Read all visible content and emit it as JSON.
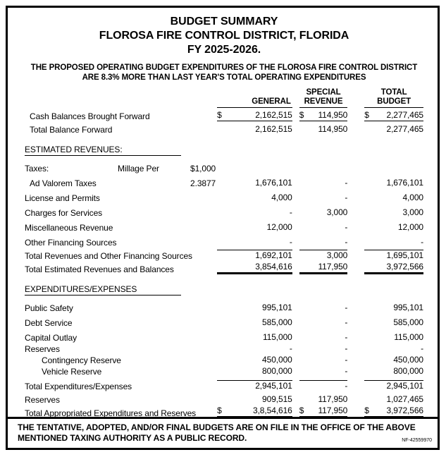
{
  "header": {
    "title_line1": "BUDGET SUMMARY",
    "title_line2": "FLOROSA FIRE CONTROL DISTRICT, FLORIDA",
    "title_line3": "FY 2025-2026.",
    "subtitle_line1": "THE PROPOSED OPERATING BUDGET EXPENDITURES OF THE FLOROSA FIRE CONTROL DISTRICT",
    "subtitle_line2": "ARE 8.3% MORE THAN LAST YEAR'S TOTAL OPERATING EXPENDITURES"
  },
  "columns": {
    "general": "GENERAL",
    "special_line1": "SPECIAL",
    "special_line2": "REVENUE",
    "total_line1": "TOTAL",
    "total_line2": "BUDGET"
  },
  "table": {
    "rows": [
      {
        "type": "data",
        "label": "Cash Balances Brought Forward",
        "indent": 1,
        "dollar": true,
        "general": "2,162,515",
        "special": "114,950",
        "total": "2,277,465",
        "underline": true,
        "compact": "s"
      },
      {
        "type": "data",
        "label": "Total Balance Forward",
        "indent": 1,
        "general": "2,162,515",
        "special": "114,950",
        "total": "2,277,465",
        "compact": "s"
      },
      {
        "type": "spacer"
      },
      {
        "type": "section",
        "label": "ESTIMATED REVENUES:"
      },
      {
        "type": "data",
        "label": "Taxes:",
        "mid": "Millage Per",
        "extra": "$1,000"
      },
      {
        "type": "data",
        "label": "Ad Valorem Taxes",
        "indent": 1,
        "extra": "2.3877",
        "general": "1,676,101",
        "special": "-",
        "total": "1,676,101"
      },
      {
        "type": "data",
        "label": "License and Permits",
        "general": "4,000",
        "special": "-",
        "total": "4,000"
      },
      {
        "type": "data",
        "label": "Charges for Services",
        "general": "-",
        "special": "3,000",
        "total": "3,000"
      },
      {
        "type": "data",
        "label": "Miscellaneous Revenue",
        "general": "12,000",
        "special": "-",
        "total": "12,000"
      },
      {
        "type": "data",
        "label": "Other Financing Sources",
        "general": "-",
        "special": "-",
        "total": "-"
      },
      {
        "type": "data",
        "label": "Total Revenues and Other Financing Sources",
        "general": "1,692,101",
        "special": "3,000",
        "total": "1,695,101",
        "line_above": true,
        "compact": "s"
      },
      {
        "type": "data",
        "label": "Total Estimated Revenues and Balances",
        "general": "3,854,616",
        "special": "117,950",
        "total": "3,972,566",
        "thick_below": true,
        "compact": "s"
      },
      {
        "type": "spacer"
      },
      {
        "type": "section",
        "label": "EXPENDITURES/EXPENSES"
      },
      {
        "type": "data",
        "label": "Public Safety",
        "general": "995,101",
        "special": "-",
        "total": "995,101"
      },
      {
        "type": "data",
        "label": "Debt Service",
        "general": "585,000",
        "special": "-",
        "total": "585,000"
      },
      {
        "type": "data",
        "label": "Capital Outlay",
        "general": "115,000",
        "special": "-",
        "total": "115,000"
      },
      {
        "type": "data",
        "label": "Reserves",
        "general": "-",
        "special": "-",
        "total": "-",
        "compact": "t"
      },
      {
        "type": "data",
        "label": "Contingency Reserve",
        "indent": 2,
        "general": "450,000",
        "special": "-",
        "total": "450,000",
        "compact": "t"
      },
      {
        "type": "data",
        "label": "Vehicle Reserve",
        "indent": 2,
        "general": "800,000",
        "special": "-",
        "total": "800,000",
        "compact": "t"
      },
      {
        "type": "data",
        "label": "Total Expenditures/Expenses",
        "general": "2,945,101",
        "special": "-",
        "total": "2,945,101",
        "line_above": true
      },
      {
        "type": "data",
        "label": "Reserves",
        "general": "909,515",
        "special": "117,950",
        "total": "1,027,465",
        "compact": "s"
      },
      {
        "type": "data",
        "label": "Total Appropriated Expenditures and Reserves",
        "dollar": true,
        "general": "3,8,54,616",
        "special": "117,950",
        "total": "3,972,566",
        "thick_below": true,
        "compact": "s"
      }
    ]
  },
  "footer": {
    "note_line1": "THE TENTATIVE, ADOPTED, AND/OR FINAL BUDGETS ARE ON FILE IN THE OFFICE OF THE ABOVE",
    "note_line2": "MENTIONED TAXING AUTHORITY AS A PUBLIC RECORD.",
    "ref": "NF-42559970"
  },
  "colors": {
    "ink": "#000000",
    "paper": "#ffffff"
  }
}
